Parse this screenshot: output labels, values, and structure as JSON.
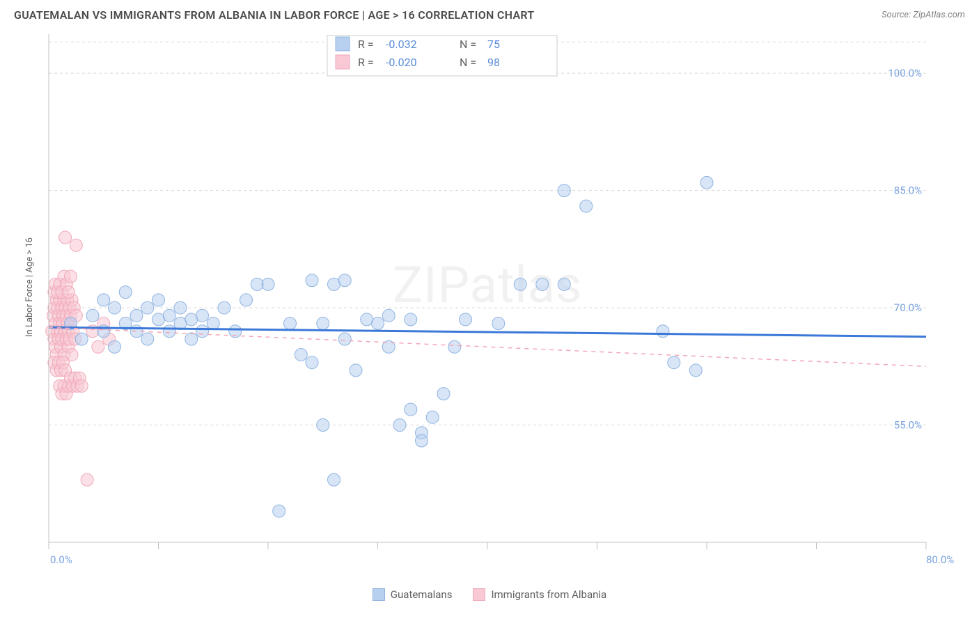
{
  "title": "GUATEMALAN VS IMMIGRANTS FROM ALBANIA IN LABOR FORCE | AGE > 16 CORRELATION CHART",
  "source_label": "Source: ZipAtlas.com",
  "watermark": "ZIPatlas",
  "y_axis_title": "In Labor Force | Age > 16",
  "chart": {
    "type": "scatter",
    "background_color": "#ffffff",
    "grid_color": "#d8d8d8",
    "axis_color": "#c0c0c0",
    "xlim": [
      0,
      80
    ],
    "ylim": [
      40,
      105
    ],
    "x_ticks": [
      0,
      10,
      20,
      30,
      40,
      50,
      60,
      70,
      80
    ],
    "x_tick_labels": {
      "min": "0.0%",
      "max": "80.0%"
    },
    "y_ticks": [
      55,
      70,
      85,
      100
    ],
    "y_tick_labels": [
      "55.0%",
      "70.0%",
      "85.0%",
      "100.0%"
    ],
    "marker_radius": 9,
    "marker_opacity": 0.55,
    "series": [
      {
        "name": "Guatemalans",
        "color_fill": "#b8d0f0",
        "color_stroke": "#8fb3e0",
        "R": "-0.032",
        "N": "75",
        "trendline": {
          "color": "#3b78d8",
          "width": 3,
          "dash": "none",
          "y0": 67.5,
          "y1": 66.3
        },
        "points": [
          [
            2,
            68
          ],
          [
            3,
            66
          ],
          [
            4,
            69
          ],
          [
            5,
            67
          ],
          [
            5,
            71
          ],
          [
            6,
            65
          ],
          [
            6,
            70
          ],
          [
            7,
            68
          ],
          [
            7,
            72
          ],
          [
            8,
            67
          ],
          [
            8,
            69
          ],
          [
            9,
            66
          ],
          [
            9,
            70
          ],
          [
            10,
            68.5
          ],
          [
            10,
            71
          ],
          [
            11,
            67
          ],
          [
            11,
            69
          ],
          [
            12,
            68
          ],
          [
            12,
            70
          ],
          [
            13,
            66
          ],
          [
            13,
            68.5
          ],
          [
            14,
            67
          ],
          [
            14,
            69
          ],
          [
            15,
            68
          ],
          [
            16,
            70
          ],
          [
            17,
            67
          ],
          [
            18,
            71
          ],
          [
            19,
            73
          ],
          [
            20,
            73
          ],
          [
            21,
            44
          ],
          [
            22,
            68
          ],
          [
            23,
            64
          ],
          [
            24,
            63
          ],
          [
            24,
            73.5
          ],
          [
            25,
            55
          ],
          [
            25,
            68
          ],
          [
            26,
            73
          ],
          [
            26,
            48
          ],
          [
            27,
            66
          ],
          [
            27,
            73.5
          ],
          [
            28,
            62
          ],
          [
            29,
            68.5
          ],
          [
            30,
            68
          ],
          [
            31,
            65
          ],
          [
            31,
            69
          ],
          [
            32,
            55
          ],
          [
            33,
            68.5
          ],
          [
            33,
            57
          ],
          [
            34,
            54
          ],
          [
            34,
            53
          ],
          [
            35,
            56
          ],
          [
            36,
            59
          ],
          [
            37,
            65
          ],
          [
            38,
            68.5
          ],
          [
            41,
            68
          ],
          [
            43,
            73
          ],
          [
            45,
            73
          ],
          [
            47,
            85
          ],
          [
            47,
            73
          ],
          [
            49,
            83
          ],
          [
            56,
            67
          ],
          [
            57,
            63
          ],
          [
            59,
            62
          ],
          [
            60,
            86
          ]
        ]
      },
      {
        "name": "Immigrants from Albania",
        "color_fill": "#f8c8d4",
        "color_stroke": "#f0a8b8",
        "R": "-0.020",
        "N": "98",
        "trendline": {
          "color": "#f4a6b8",
          "width": 1.5,
          "dash": "6 6",
          "y0": 67.5,
          "y1": 62.5
        },
        "points": [
          [
            0.3,
            67
          ],
          [
            0.4,
            69
          ],
          [
            0.5,
            66
          ],
          [
            0.5,
            70
          ],
          [
            0.6,
            65
          ],
          [
            0.6,
            68
          ],
          [
            0.7,
            71
          ],
          [
            0.7,
            64
          ],
          [
            0.8,
            67
          ],
          [
            0.8,
            70
          ],
          [
            0.9,
            66
          ],
          [
            0.9,
            69
          ],
          [
            1.0,
            68
          ],
          [
            1.0,
            71
          ],
          [
            1.1,
            65
          ],
          [
            1.1,
            67
          ],
          [
            1.2,
            70
          ],
          [
            1.2,
            66
          ],
          [
            1.3,
            69
          ],
          [
            1.3,
            68
          ],
          [
            1.4,
            71
          ],
          [
            1.4,
            64
          ],
          [
            1.5,
            67
          ],
          [
            1.5,
            70
          ],
          [
            1.6,
            66
          ],
          [
            1.6,
            69
          ],
          [
            1.7,
            68
          ],
          [
            1.7,
            71
          ],
          [
            1.8,
            65
          ],
          [
            1.8,
            67
          ],
          [
            1.9,
            70
          ],
          [
            1.9,
            66
          ],
          [
            2.0,
            69
          ],
          [
            2.0,
            68
          ],
          [
            2.1,
            71
          ],
          [
            2.1,
            64
          ],
          [
            2.2,
            67
          ],
          [
            2.3,
            70
          ],
          [
            2.4,
            66
          ],
          [
            2.5,
            69
          ],
          [
            0.5,
            72
          ],
          [
            0.6,
            73
          ],
          [
            0.8,
            72
          ],
          [
            1.0,
            73
          ],
          [
            1.2,
            72
          ],
          [
            1.4,
            74
          ],
          [
            1.6,
            73
          ],
          [
            1.8,
            72
          ],
          [
            2.0,
            74
          ],
          [
            0.5,
            63
          ],
          [
            0.7,
            62
          ],
          [
            0.9,
            63
          ],
          [
            1.1,
            62
          ],
          [
            1.3,
            63
          ],
          [
            1.5,
            62
          ],
          [
            1.0,
            60
          ],
          [
            1.2,
            59
          ],
          [
            1.4,
            60
          ],
          [
            1.6,
            59
          ],
          [
            1.8,
            60
          ],
          [
            2.0,
            61
          ],
          [
            2.2,
            60
          ],
          [
            2.4,
            61
          ],
          [
            2.6,
            60
          ],
          [
            2.8,
            61
          ],
          [
            3.0,
            60
          ],
          [
            1.5,
            79
          ],
          [
            2.5,
            78
          ],
          [
            3.5,
            48
          ],
          [
            4.0,
            67
          ],
          [
            4.5,
            65
          ],
          [
            5.0,
            68
          ],
          [
            5.5,
            66
          ]
        ]
      }
    ]
  },
  "bottom_legend": [
    {
      "label": "Guatemalans",
      "fill": "#b8d0f0",
      "stroke": "#8fb3e0"
    },
    {
      "label": "Immigrants from Albania",
      "fill": "#f8c8d4",
      "stroke": "#f0a8b8"
    }
  ],
  "corr_legend": {
    "R_label": "R =",
    "N_label": "N ="
  }
}
